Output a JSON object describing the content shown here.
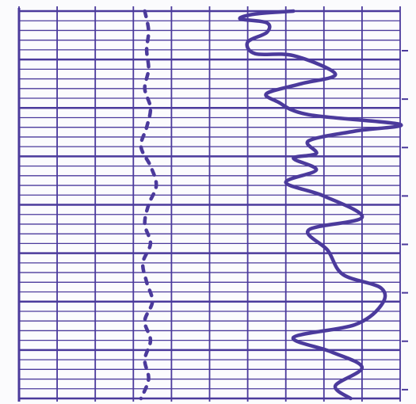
{
  "colors": {
    "paper": "#fbfbfd",
    "ink": "#4b3a9c",
    "grid": "#4b3a9c"
  },
  "chart_data": [
    {
      "type": "line",
      "title": "",
      "xlabel": "",
      "ylabel": "",
      "grid": true,
      "legend": "none",
      "x_divisions": 10,
      "y_divisions": 40,
      "xlim": [
        0,
        10
      ],
      "ylim": [
        0,
        40
      ],
      "series": [
        {
          "style": "dashed",
          "points": [
            [
              3.3,
              40
            ],
            [
              3.4,
              38
            ],
            [
              3.35,
              36
            ],
            [
              3.4,
              34
            ],
            [
              3.3,
              32
            ],
            [
              3.45,
              30
            ],
            [
              3.35,
              28
            ],
            [
              3.2,
              26
            ],
            [
              3.45,
              24
            ],
            [
              3.6,
              22
            ],
            [
              3.4,
              20
            ],
            [
              3.3,
              18
            ],
            [
              3.45,
              16
            ],
            [
              3.25,
              14
            ],
            [
              3.35,
              12
            ],
            [
              3.5,
              10
            ],
            [
              3.3,
              8
            ],
            [
              3.45,
              6
            ],
            [
              3.3,
              4
            ],
            [
              3.4,
              2
            ],
            [
              3.2,
              0
            ]
          ]
        },
        {
          "style": "solid",
          "points": [
            [
              7.2,
              40
            ],
            [
              6.2,
              39.7
            ],
            [
              5.8,
              39.2
            ],
            [
              6.5,
              38.8
            ],
            [
              6.5,
              37.8
            ],
            [
              6.0,
              36.8
            ],
            [
              6.2,
              35.6
            ],
            [
              7.2,
              35.4
            ],
            [
              8.3,
              33.5
            ],
            [
              7.4,
              32.5
            ],
            [
              6.5,
              31.5
            ],
            [
              6.8,
              30.6
            ],
            [
              7.6,
              29.3
            ],
            [
              10.0,
              28.3
            ],
            [
              8.8,
              27.6
            ],
            [
              7.6,
              26.6
            ],
            [
              7.8,
              25.3
            ],
            [
              7.2,
              24.8
            ],
            [
              7.8,
              23.6
            ],
            [
              7.0,
              22.3
            ],
            [
              8.0,
              20.9
            ],
            [
              9.0,
              18.7
            ],
            [
              7.6,
              17.4
            ],
            [
              8.1,
              15.3
            ],
            [
              8.5,
              12.8
            ],
            [
              9.5,
              11.4
            ],
            [
              9.5,
              9.6
            ],
            [
              8.8,
              7.6
            ],
            [
              7.2,
              6.3
            ],
            [
              8.2,
              4.8
            ],
            [
              9.0,
              3.2
            ],
            [
              8.3,
              1.3
            ],
            [
              8.7,
              0
            ]
          ]
        }
      ]
    }
  ]
}
